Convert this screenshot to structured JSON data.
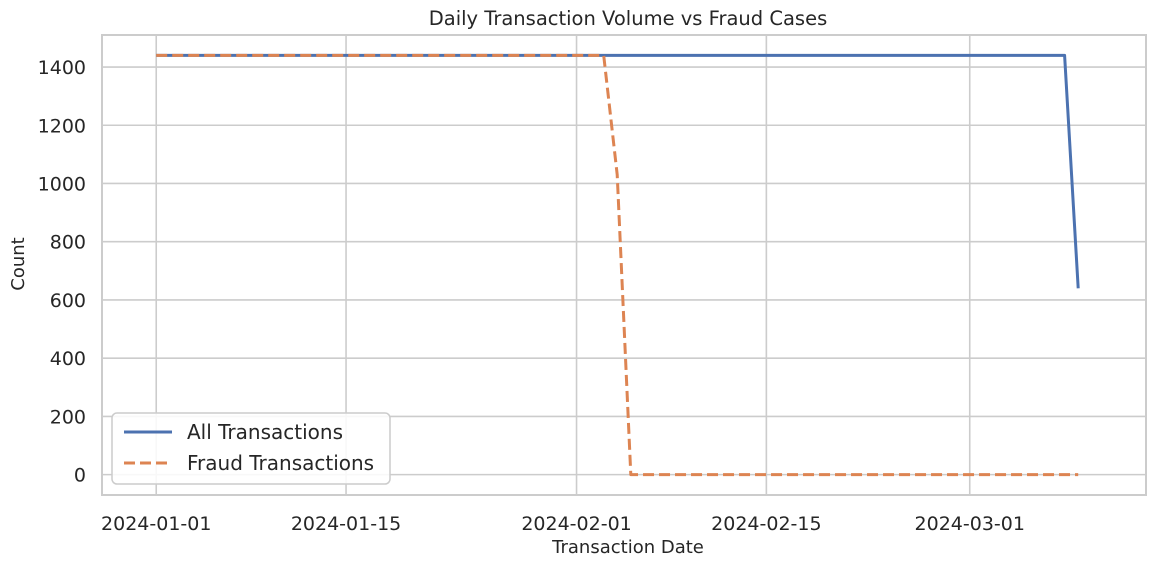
{
  "chart_data": {
    "type": "line",
    "title": "Daily Transaction Volume vs Fraud Cases",
    "xlabel": "Transaction Date",
    "ylabel": "Count",
    "x_type": "date",
    "xlim": [
      "2023-12-28",
      "2024-03-14"
    ],
    "ylim": [
      -70,
      1510
    ],
    "x_ticks": [
      "2024-01-01",
      "2024-01-15",
      "2024-02-01",
      "2024-02-15",
      "2024-03-01"
    ],
    "y_ticks": [
      0,
      200,
      400,
      600,
      800,
      1000,
      1200,
      1400
    ],
    "grid": true,
    "legend": {
      "position": "lower-left"
    },
    "series": [
      {
        "name": "All Transactions",
        "color": "#4c72b0",
        "style": "solid",
        "x": [
          "2024-01-01",
          "2024-03-08",
          "2024-03-09"
        ],
        "y": [
          1440,
          1440,
          640
        ]
      },
      {
        "name": "Fraud Transactions",
        "color": "#dd8452",
        "style": "dashed",
        "x": [
          "2024-01-01",
          "2024-02-03",
          "2024-02-04",
          "2024-02-05",
          "2024-03-09"
        ],
        "y": [
          1440,
          1440,
          1030,
          0,
          0
        ]
      }
    ]
  }
}
